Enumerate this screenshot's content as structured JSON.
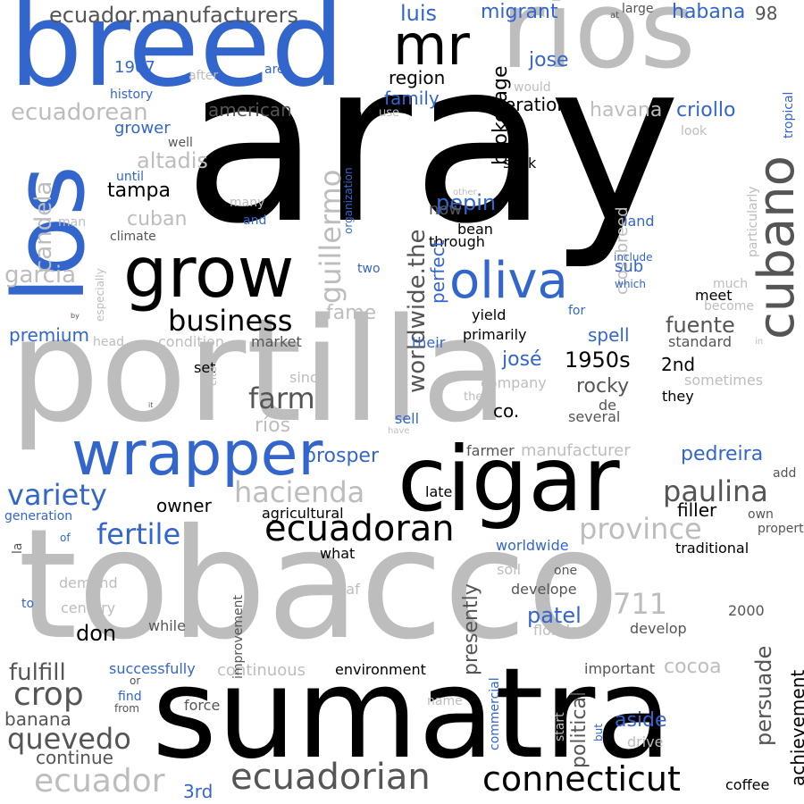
{
  "palette": {
    "black": "#000000",
    "dark_gray": "#555555",
    "light_gray": "#bdbdbd",
    "blue": "#3366cc"
  },
  "words": [
    {
      "text": "aray",
      "color": "#000000"
    },
    {
      "text": "portilla",
      "color": "#bdbdbd"
    },
    {
      "text": "tobacco",
      "color": "#bdbdbd"
    },
    {
      "text": "sumatra",
      "color": "#000000"
    },
    {
      "text": "breed",
      "color": "#3366cc"
    },
    {
      "text": "ríos",
      "color": "#bdbdbd"
    },
    {
      "text": "los",
      "color": "#3366cc"
    },
    {
      "text": "cigar",
      "color": "#000000"
    },
    {
      "text": "grow",
      "color": "#000000"
    },
    {
      "text": "wrapper",
      "color": "#3366cc"
    },
    {
      "text": "oliva",
      "color": "#3366cc"
    },
    {
      "text": "cubano",
      "color": "#555555"
    },
    {
      "text": "mr",
      "color": "#000000"
    },
    {
      "text": "ecuadoran",
      "color": "#000000"
    },
    {
      "text": "ecuadorian",
      "color": "#555555"
    },
    {
      "text": "connecticut",
      "color": "#000000"
    },
    {
      "text": "ecuador.manufacturers",
      "color": "#555555"
    },
    {
      "text": "business",
      "color": "#000000"
    },
    {
      "text": "farm",
      "color": "#555555"
    },
    {
      "text": "variety",
      "color": "#3366cc"
    },
    {
      "text": "fertile",
      "color": "#3366cc"
    },
    {
      "text": "hacienda",
      "color": "#bdbdbd"
    },
    {
      "text": "paulina",
      "color": "#555555"
    },
    {
      "text": "province",
      "color": "#bdbdbd"
    },
    {
      "text": "crop",
      "color": "#555555"
    },
    {
      "text": "quevedo",
      "color": "#555555"
    },
    {
      "text": "ecuador",
      "color": "#bdbdbd"
    },
    {
      "text": "guillermo",
      "color": "#bdbdbd"
    },
    {
      "text": "worldwide.the",
      "color": "#555555"
    },
    {
      "text": "ecuadorean",
      "color": "#bdbdbd"
    },
    {
      "text": "candela",
      "color": "#bdbdbd"
    },
    {
      "text": "garcia",
      "color": "#bdbdbd"
    },
    {
      "text": "luis",
      "color": "#3366cc"
    },
    {
      "text": "migrant",
      "color": "#3366cc"
    },
    {
      "text": "habana",
      "color": "#3366cc"
    },
    {
      "text": "98",
      "color": "#555555"
    },
    {
      "text": "region",
      "color": "#000000"
    },
    {
      "text": "brokerage",
      "color": "#000000"
    },
    {
      "text": "jose",
      "color": "#3366cc"
    },
    {
      "text": "operation",
      "color": "#000000"
    },
    {
      "text": "havana",
      "color": "#bdbdbd"
    },
    {
      "text": "criollo",
      "color": "#3366cc"
    },
    {
      "text": "family",
      "color": "#3366cc"
    },
    {
      "text": "1967",
      "color": "#3366cc"
    },
    {
      "text": "american",
      "color": "#555555"
    },
    {
      "text": "grower",
      "color": "#3366cc"
    },
    {
      "text": "altadis",
      "color": "#bdbdbd"
    },
    {
      "text": "tampa",
      "color": "#000000"
    },
    {
      "text": "cuban",
      "color": "#bdbdbd"
    },
    {
      "text": "pepin",
      "color": "#3366cc"
    },
    {
      "text": "now",
      "color": "#555555"
    },
    {
      "text": "bean",
      "color": "#000000"
    },
    {
      "text": "through",
      "color": "#000000"
    },
    {
      "text": "crossbreed",
      "color": "#bdbdbd"
    },
    {
      "text": "perfect",
      "color": "#3366cc"
    },
    {
      "text": "seek",
      "color": "#000000"
    },
    {
      "text": "sub",
      "color": "#3366cc"
    },
    {
      "text": "land",
      "color": "#3366cc"
    },
    {
      "text": "fuente",
      "color": "#555555"
    },
    {
      "text": "spell",
      "color": "#3366cc"
    },
    {
      "text": "josé",
      "color": "#3366cc"
    },
    {
      "text": "1950s",
      "color": "#000000"
    },
    {
      "text": "2nd",
      "color": "#000000"
    },
    {
      "text": "rocky",
      "color": "#555555"
    },
    {
      "text": "co.",
      "color": "#000000"
    },
    {
      "text": "prosper",
      "color": "#3366cc"
    },
    {
      "text": "pedreira",
      "color": "#3366cc"
    },
    {
      "text": "fame",
      "color": "#bdbdbd"
    },
    {
      "text": "premium",
      "color": "#3366cc"
    },
    {
      "text": "ríos",
      "color": "#bdbdbd"
    },
    {
      "text": "711",
      "color": "#bdbdbd"
    },
    {
      "text": "patel",
      "color": "#3366cc"
    },
    {
      "text": "owner",
      "color": "#000000"
    },
    {
      "text": "filler",
      "color": "#000000"
    },
    {
      "text": "late",
      "color": "#000000"
    },
    {
      "text": "don",
      "color": "#000000"
    },
    {
      "text": "fulfill",
      "color": "#555555"
    },
    {
      "text": "banana",
      "color": "#555555"
    },
    {
      "text": "continue",
      "color": "#555555"
    },
    {
      "text": "3rd",
      "color": "#3366cc"
    },
    {
      "text": "cocoa",
      "color": "#bdbdbd"
    },
    {
      "text": "aside",
      "color": "#3366cc"
    },
    {
      "text": "persuade",
      "color": "#555555"
    },
    {
      "text": "achievement",
      "color": "#000000"
    },
    {
      "text": "coffee",
      "color": "#000000"
    },
    {
      "text": "presently",
      "color": "#555555"
    },
    {
      "text": "political",
      "color": "#555555"
    },
    {
      "text": "environment",
      "color": "#000000"
    },
    {
      "text": "continuous",
      "color": "#bdbdbd"
    },
    {
      "text": "successfully",
      "color": "#3366cc"
    },
    {
      "text": "worldwide",
      "color": "#3366cc"
    },
    {
      "text": "agricultural",
      "color": "#000000"
    },
    {
      "text": "traditional",
      "color": "#000000"
    },
    {
      "text": "develope",
      "color": "#555555"
    },
    {
      "text": "develop",
      "color": "#555555"
    },
    {
      "text": "2000",
      "color": "#555555"
    },
    {
      "text": "important",
      "color": "#555555"
    },
    {
      "text": "manufacturer",
      "color": "#bdbdbd"
    },
    {
      "text": "farmer",
      "color": "#555555"
    },
    {
      "text": "primarily",
      "color": "#000000"
    },
    {
      "text": "yield",
      "color": "#000000"
    },
    {
      "text": "meet",
      "color": "#000000"
    },
    {
      "text": "standard",
      "color": "#555555"
    },
    {
      "text": "company",
      "color": "#bdbdbd"
    },
    {
      "text": "several",
      "color": "#555555"
    },
    {
      "text": "they",
      "color": "#000000"
    },
    {
      "text": "sometimes",
      "color": "#bdbdbd"
    },
    {
      "text": "de",
      "color": "#555555"
    },
    {
      "text": "sell",
      "color": "#3366cc"
    },
    {
      "text": "their",
      "color": "#3366cc"
    },
    {
      "text": "market",
      "color": "#555555"
    },
    {
      "text": "set",
      "color": "#000000"
    },
    {
      "text": "since",
      "color": "#bdbdbd"
    },
    {
      "text": "condition",
      "color": "#bdbdbd"
    },
    {
      "text": "head",
      "color": "#bdbdbd"
    },
    {
      "text": "generation",
      "color": "#3366cc"
    },
    {
      "text": "of",
      "color": "#3366cc"
    },
    {
      "text": "la",
      "color": "#555555"
    },
    {
      "text": "to",
      "color": "#3366cc"
    },
    {
      "text": "demand",
      "color": "#bdbdbd"
    },
    {
      "text": "century",
      "color": "#bdbdbd"
    },
    {
      "text": "while",
      "color": "#555555"
    },
    {
      "text": "improvement",
      "color": "#555555"
    },
    {
      "text": "leaf",
      "color": "#bdbdbd"
    },
    {
      "text": "what",
      "color": "#000000"
    },
    {
      "text": "soil",
      "color": "#bdbdbd"
    },
    {
      "text": "one",
      "color": "#555555"
    },
    {
      "text": "florida",
      "color": "#bdbdbd"
    },
    {
      "text": "force",
      "color": "#555555"
    },
    {
      "text": "find",
      "color": "#3366cc"
    },
    {
      "text": "from",
      "color": "#555555"
    },
    {
      "text": "or",
      "color": "#555555"
    },
    {
      "text": "name",
      "color": "#bdbdbd"
    },
    {
      "text": "commercial",
      "color": "#3366cc"
    },
    {
      "text": "start",
      "color": "#bdbdbd"
    },
    {
      "text": "but",
      "color": "#3366cc"
    },
    {
      "text": "drive",
      "color": "#bdbdbd"
    },
    {
      "text": "own",
      "color": "#555555"
    },
    {
      "text": "add",
      "color": "#555555"
    },
    {
      "text": "property",
      "color": "#555555"
    },
    {
      "text": "tropical",
      "color": "#3366cc"
    },
    {
      "text": "particularly",
      "color": "#bdbdbd"
    },
    {
      "text": "much",
      "color": "#bdbdbd"
    },
    {
      "text": "become",
      "color": "#bdbdbd"
    },
    {
      "text": "in",
      "color": "#bdbdbd"
    },
    {
      "text": "look",
      "color": "#bdbdbd"
    },
    {
      "text": "large",
      "color": "#555555"
    },
    {
      "text": "at",
      "color": "#555555"
    },
    {
      "text": "would",
      "color": "#bdbdbd"
    },
    {
      "text": "use",
      "color": "#bdbdbd"
    },
    {
      "text": "with",
      "color": "#000000"
    },
    {
      "text": "organization",
      "color": "#3366cc"
    },
    {
      "text": "other",
      "color": "#bdbdbd"
    },
    {
      "text": "many",
      "color": "#bdbdbd"
    },
    {
      "text": "and",
      "color": "#3366cc"
    },
    {
      "text": "well",
      "color": "#555555"
    },
    {
      "text": "history",
      "color": "#3366cc"
    },
    {
      "text": "after",
      "color": "#bdbdbd"
    },
    {
      "text": "area",
      "color": "#3366cc"
    },
    {
      "text": "until",
      "color": "#3366cc"
    },
    {
      "text": "man",
      "color": "#bdbdbd"
    },
    {
      "text": "climate",
      "color": "#555555"
    },
    {
      "text": "especially",
      "color": "#bdbdbd"
    },
    {
      "text": "two",
      "color": "#3366cc"
    },
    {
      "text": "include",
      "color": "#3366cc"
    },
    {
      "text": "which",
      "color": "#3366cc"
    },
    {
      "text": "for",
      "color": "#3366cc"
    },
    {
      "text": "the",
      "color": "#bdbdbd"
    },
    {
      "text": "have",
      "color": "#bdbdbd"
    },
    {
      "text": "cite",
      "color": "#bdbdbd"
    },
    {
      "text": "it",
      "color": "#555555"
    },
    {
      "text": "by",
      "color": "#555555"
    }
  ]
}
